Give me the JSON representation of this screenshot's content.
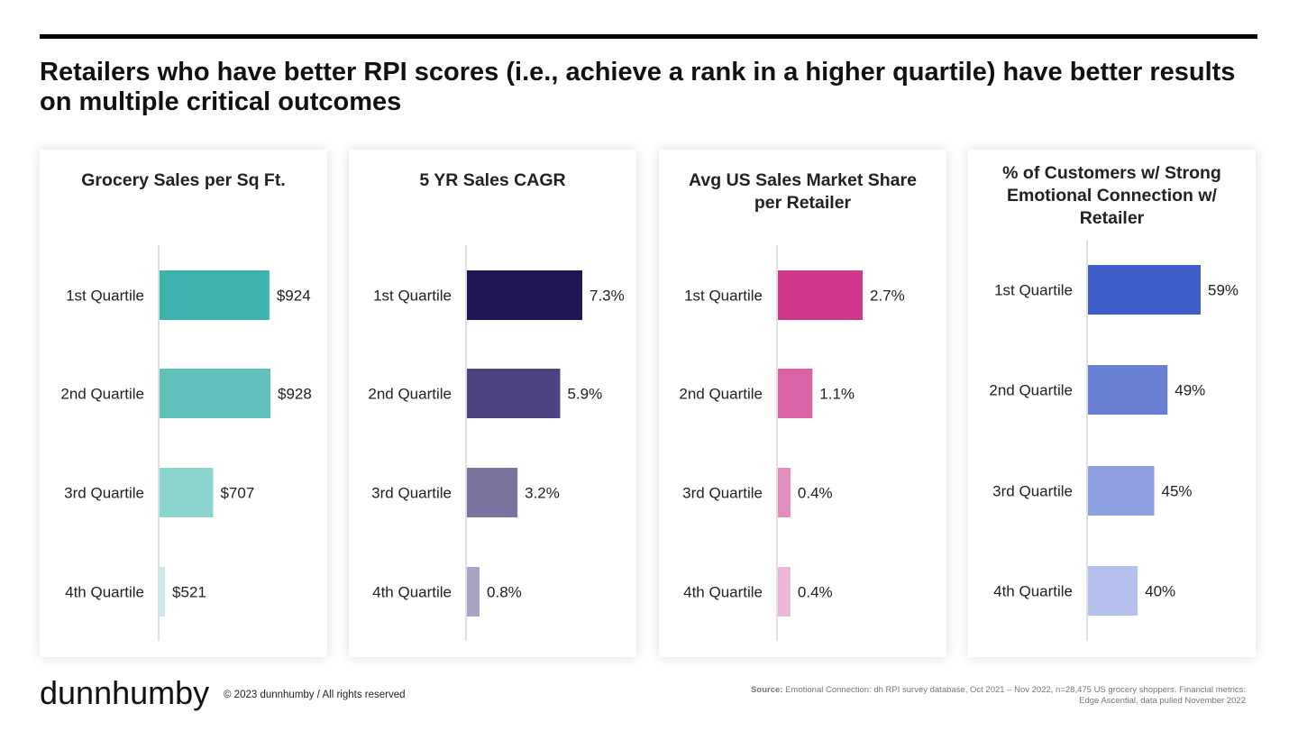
{
  "title": "Retailers who have better RPI scores (i.e., achieve a rank in a higher quartile) have better results on multiple critical outcomes",
  "footer": {
    "logo": "dunnhumby",
    "copyright": "© 2023 dunnhumby / All rights reserved",
    "source_label": "Source:",
    "source_text": "Emotional Connection: dh RPI survey database, Oct 2021 – Nov 2022, n=28,475 US grocery shoppers.  Financial metrics: Edge Ascential, data pulled November 2022"
  },
  "chart_data": [
    {
      "type": "bar",
      "orientation": "horizontal",
      "title": "Grocery Sales per Sq Ft.",
      "categories": [
        "1st Quartile",
        "2nd Quartile",
        "3rd Quartile",
        "4th Quartile"
      ],
      "values": [
        924,
        928,
        707,
        521
      ],
      "value_labels": [
        "$924",
        "$928",
        "$707",
        "$521"
      ],
      "colors": [
        "#3bb2ab",
        "#62c1bb",
        "#8ad5ce",
        "#c9ecea"
      ],
      "xlim": [
        500,
        935
      ]
    },
    {
      "type": "bar",
      "orientation": "horizontal",
      "title": "5 YR Sales CAGR",
      "categories": [
        "1st Quartile",
        "2nd Quartile",
        "3rd Quartile",
        "4th Quartile"
      ],
      "values": [
        7.3,
        5.9,
        3.2,
        0.8
      ],
      "value_labels": [
        "7.3%",
        "5.9%",
        "3.2%",
        "0.8%"
      ],
      "colors": [
        "#201656",
        "#4d4380",
        "#7b72a0",
        "#aaa4c4"
      ],
      "xlim": [
        0,
        7.3
      ]
    },
    {
      "type": "bar",
      "orientation": "horizontal",
      "title": "Avg US Sales Market Share per Retailer",
      "categories": [
        "1st Quartile",
        "2nd Quartile",
        "3rd Quartile",
        "4th Quartile"
      ],
      "values": [
        2.7,
        1.1,
        0.4,
        0.4
      ],
      "value_labels": [
        "2.7%",
        "1.1%",
        "0.4%",
        "0.4%"
      ],
      "colors": [
        "#d1378b",
        "#db62a5",
        "#e38cbe",
        "#edb7d7"
      ],
      "xlim": [
        0,
        2.7
      ]
    },
    {
      "type": "bar",
      "orientation": "horizontal",
      "title": "% of Customers w/ Strong Emotional Connection w/ Retailer",
      "categories": [
        "1st Quartile",
        "2nd Quartile",
        "3rd Quartile",
        "4th Quartile"
      ],
      "values": [
        59,
        49,
        45,
        40
      ],
      "value_labels": [
        "59%",
        "49%",
        "45%",
        "40%"
      ],
      "colors": [
        "#405ec7",
        "#687fd3",
        "#8e9fdf",
        "#b5c0ec"
      ],
      "xlim": [
        25,
        59
      ]
    }
  ]
}
